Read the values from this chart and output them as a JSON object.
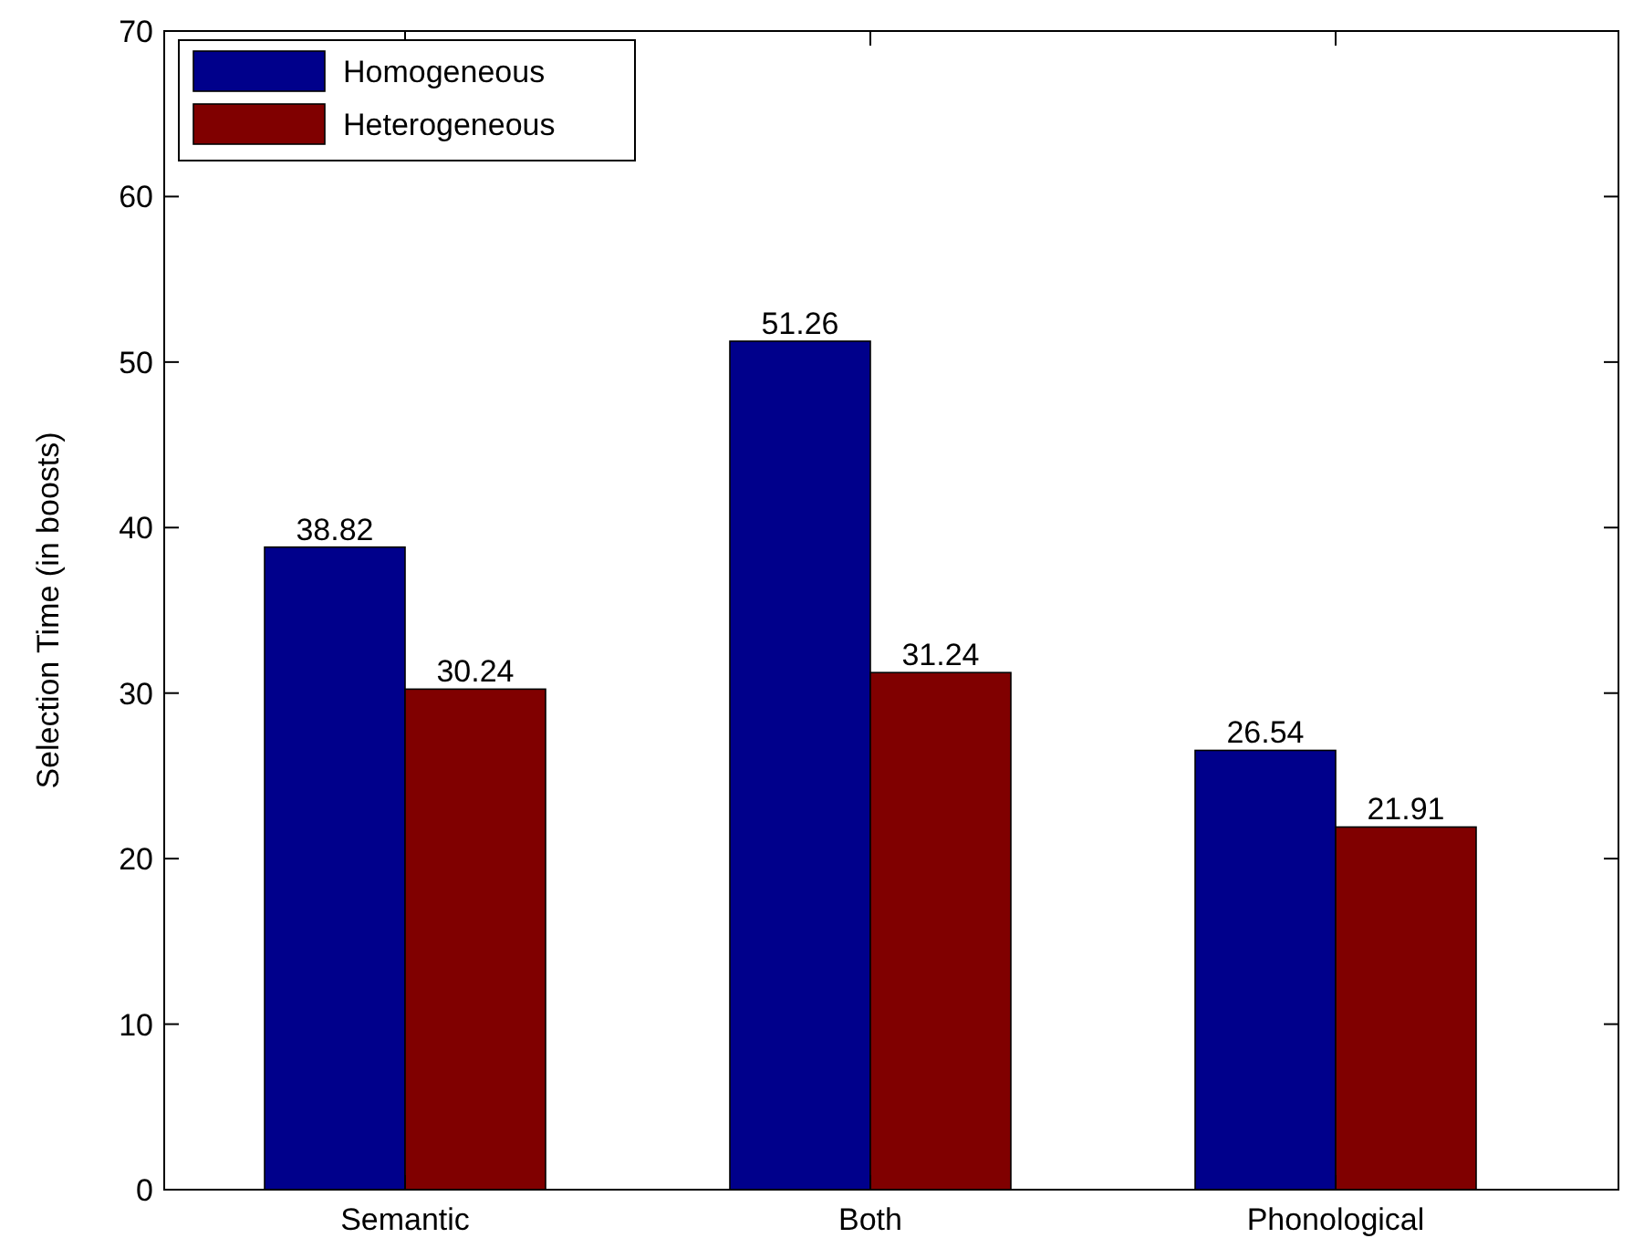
{
  "chart_data": {
    "type": "bar",
    "ylabel": "Selection Time (in boosts)",
    "categories": [
      "Semantic",
      "Both",
      "Phonological"
    ],
    "series": [
      {
        "name": "Homogeneous",
        "color": "#00008b",
        "values": [
          38.82,
          51.26,
          26.54
        ]
      },
      {
        "name": "Heterogeneous",
        "color": "#800000",
        "values": [
          30.24,
          31.24,
          21.91
        ]
      }
    ],
    "ylim": [
      0,
      70
    ],
    "yticks": [
      0,
      10,
      20,
      30,
      40,
      50,
      60,
      70
    ],
    "data_labels": true,
    "legend": "top left",
    "grid": false
  }
}
